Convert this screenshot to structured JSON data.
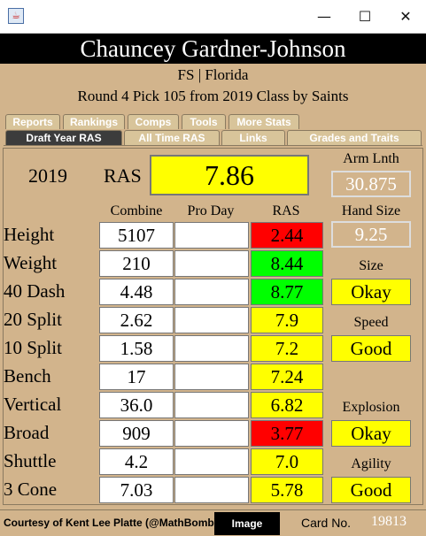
{
  "window": {
    "app_icon": "java-app-icon",
    "min_glyph": "—",
    "max_glyph": "☐",
    "close_glyph": "✕"
  },
  "player": {
    "name": "Chauncey Gardner-Johnson",
    "position_school": "FS | Florida",
    "draft_info": "Round 4 Pick 105 from 2019 Class by Saints"
  },
  "tabs_top": [
    "Reports",
    "Rankings",
    "Comps",
    "Tools",
    "More Stats"
  ],
  "tabs_bottom": [
    "Draft Year RAS",
    "All Time RAS",
    "Links",
    "Grades and Traits"
  ],
  "ras": {
    "year": "2019",
    "label": "RAS",
    "value": "7.86"
  },
  "arm": {
    "label": "Arm Lnth",
    "value": "30.875"
  },
  "hand": {
    "label": "Hand Size",
    "value": "9.25"
  },
  "columns": {
    "combine": "Combine",
    "proday": "Pro Day",
    "ras": "RAS"
  },
  "rows": [
    {
      "label": "Height",
      "combine": "5107",
      "proday": "",
      "ras": "2.44",
      "color": "#ff0000"
    },
    {
      "label": "Weight",
      "combine": "210",
      "proday": "",
      "ras": "8.44",
      "color": "#00ff00"
    },
    {
      "label": "40 Dash",
      "combine": "4.48",
      "proday": "",
      "ras": "8.77",
      "color": "#00ff00"
    },
    {
      "label": "20 Split",
      "combine": "2.62",
      "proday": "",
      "ras": "7.9",
      "color": "#ffff00"
    },
    {
      "label": "10 Split",
      "combine": "1.58",
      "proday": "",
      "ras": "7.2",
      "color": "#ffff00"
    },
    {
      "label": "Bench",
      "combine": "17",
      "proday": "",
      "ras": "7.24",
      "color": "#ffff00"
    },
    {
      "label": "Vertical",
      "combine": "36.0",
      "proday": "",
      "ras": "6.82",
      "color": "#ffff00"
    },
    {
      "label": "Broad",
      "combine": "909",
      "proday": "",
      "ras": "3.77",
      "color": "#ff0000"
    },
    {
      "label": "Shuttle",
      "combine": "4.2",
      "proday": "",
      "ras": "7.0",
      "color": "#ffff00"
    },
    {
      "label": "3 Cone",
      "combine": "7.03",
      "proday": "",
      "ras": "5.78",
      "color": "#ffff00"
    }
  ],
  "grades": [
    {
      "label": "Size",
      "value": "Okay"
    },
    {
      "label": "Speed",
      "value": "Good"
    },
    {
      "label": "Explosion",
      "value": "Okay"
    },
    {
      "label": "Agility",
      "value": "Good"
    }
  ],
  "colors": {
    "background": "#d2b48c",
    "yellow": "#ffff00",
    "red": "#ff0000",
    "green": "#00ff00"
  },
  "footer": {
    "credit": "Courtesy of Kent Lee Platte (@MathBomb)",
    "image_button": "Image",
    "card_label": "Card No.",
    "card_number": "19813"
  }
}
